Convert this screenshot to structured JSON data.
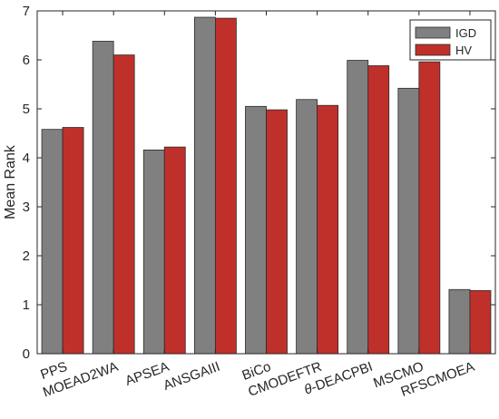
{
  "chart_data": {
    "type": "bar",
    "title": "",
    "xlabel": "",
    "ylabel": "Mean Rank",
    "ylim": [
      0,
      7
    ],
    "yticks": [
      0,
      1,
      2,
      3,
      4,
      5,
      6,
      7
    ],
    "categories": [
      "PPS",
      "MOEAD2WA",
      "APSEA",
      "ANSGAIII",
      "BiCo",
      "CMODEFTR",
      "θ-DEACPBI",
      "MSCMO",
      "RFSCMOEA"
    ],
    "series": [
      {
        "name": "IGD",
        "color": "#808080",
        "values": [
          4.58,
          6.38,
          4.16,
          6.87,
          5.05,
          5.19,
          5.99,
          5.42,
          1.31
        ]
      },
      {
        "name": "HV",
        "color": "#c0302a",
        "values": [
          4.62,
          6.1,
          4.22,
          6.85,
          4.98,
          5.07,
          5.88,
          5.96,
          1.29
        ]
      }
    ],
    "grid": false,
    "legend_position": "top-right"
  }
}
